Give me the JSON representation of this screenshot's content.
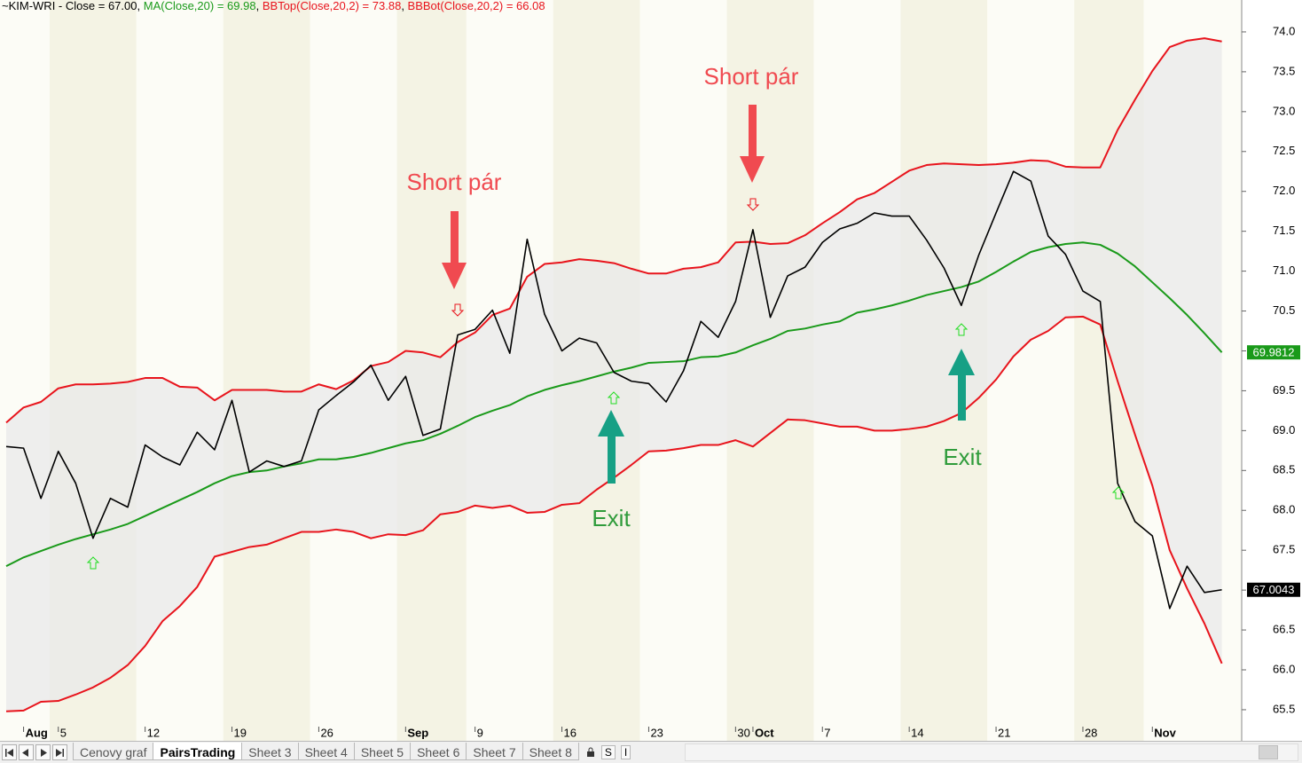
{
  "chart_data": {
    "type": "line",
    "title": "~KIM-WRI",
    "legend_separators": {
      "after_title": " - ",
      "equals": " = ",
      "between": ", "
    },
    "categories": [
      null,
      "Aug",
      null,
      "5",
      null,
      null,
      null,
      null,
      "12",
      null,
      null,
      null,
      null,
      "19",
      null,
      null,
      null,
      null,
      "26",
      null,
      null,
      null,
      null,
      "Sep",
      null,
      null,
      null,
      "9",
      null,
      null,
      null,
      null,
      "16",
      null,
      null,
      null,
      null,
      "23",
      null,
      null,
      null,
      null,
      "30",
      "Oct",
      null,
      null,
      null,
      "7",
      null,
      null,
      null,
      null,
      "14",
      null,
      null,
      null,
      null,
      "21",
      null,
      null,
      null,
      null,
      "28",
      null,
      null,
      null,
      "Nov",
      null,
      null,
      null,
      null
    ],
    "series": [
      {
        "name": "Close",
        "color": "#000000",
        "legend_value": "67.00",
        "axis_label": "67.0043",
        "values": [
          68.8,
          68.78,
          68.15,
          68.74,
          68.34,
          67.65,
          68.15,
          68.04,
          68.82,
          68.67,
          68.57,
          68.98,
          68.76,
          69.38,
          68.48,
          68.62,
          68.55,
          68.62,
          69.26,
          69.44,
          69.61,
          69.82,
          69.38,
          69.68,
          68.94,
          69.02,
          70.2,
          70.27,
          70.51,
          69.97,
          71.4,
          70.46,
          70.0,
          70.16,
          70.1,
          69.73,
          69.62,
          69.59,
          69.36,
          69.75,
          70.37,
          70.17,
          70.62,
          71.52,
          70.42,
          70.94,
          71.05,
          71.36,
          71.53,
          71.6,
          71.73,
          71.69,
          71.69,
          71.39,
          71.04,
          70.57,
          71.2,
          71.73,
          72.25,
          72.13,
          71.44,
          71.21,
          70.75,
          70.62,
          68.34,
          67.86,
          67.68,
          66.77,
          67.3,
          66.97,
          67.0043
        ]
      },
      {
        "name": "MA(Close,20)",
        "color": "#1a9a1a",
        "legend_value": "69.98",
        "axis_label": "69.9812",
        "values": [
          67.3,
          67.41,
          67.49,
          67.57,
          67.64,
          67.7,
          67.76,
          67.83,
          67.93,
          68.03,
          68.13,
          68.23,
          68.34,
          68.43,
          68.48,
          68.5,
          68.55,
          68.59,
          68.64,
          68.64,
          68.67,
          68.72,
          68.78,
          68.84,
          68.88,
          68.96,
          69.06,
          69.17,
          69.25,
          69.32,
          69.43,
          69.51,
          69.57,
          69.62,
          69.68,
          69.74,
          69.79,
          69.85,
          69.86,
          69.87,
          69.92,
          69.93,
          69.98,
          70.07,
          70.15,
          70.25,
          70.28,
          70.33,
          70.37,
          70.48,
          70.52,
          70.57,
          70.63,
          70.7,
          70.75,
          70.8,
          70.87,
          70.99,
          71.12,
          71.24,
          71.3,
          71.34,
          71.36,
          71.33,
          71.22,
          71.06,
          70.86,
          70.66,
          70.45,
          70.22,
          69.9812
        ]
      },
      {
        "name": "BBTop(Close,20,2)",
        "color": "#e8141c",
        "legend_value": "73.88",
        "values": [
          69.1,
          69.29,
          69.36,
          69.53,
          69.58,
          69.58,
          69.59,
          69.61,
          69.66,
          69.66,
          69.55,
          69.54,
          69.38,
          69.51,
          69.51,
          69.51,
          69.49,
          69.49,
          69.58,
          69.52,
          69.63,
          69.81,
          69.86,
          70.0,
          69.98,
          69.92,
          70.11,
          70.23,
          70.45,
          70.53,
          70.93,
          71.09,
          71.11,
          71.15,
          71.13,
          71.1,
          71.03,
          70.97,
          70.97,
          71.03,
          71.05,
          71.11,
          71.36,
          71.37,
          71.34,
          71.35,
          71.45,
          71.6,
          71.74,
          71.9,
          71.98,
          72.12,
          72.26,
          72.33,
          72.35,
          72.34,
          72.33,
          72.34,
          72.36,
          72.39,
          72.38,
          72.31,
          72.3,
          72.3,
          72.77,
          73.15,
          73.51,
          73.81,
          73.89,
          73.92,
          73.88
        ]
      },
      {
        "name": "BBBot(Close,20,2)",
        "color": "#e8141c",
        "legend_value": "66.08",
        "values": [
          65.48,
          65.49,
          65.6,
          65.61,
          65.69,
          65.78,
          65.9,
          66.06,
          66.3,
          66.61,
          66.8,
          67.04,
          67.42,
          67.48,
          67.54,
          67.57,
          67.65,
          67.73,
          67.73,
          67.76,
          67.73,
          67.65,
          67.7,
          67.69,
          67.75,
          67.95,
          67.98,
          68.06,
          68.03,
          68.06,
          67.97,
          67.98,
          68.07,
          68.09,
          68.26,
          68.41,
          68.57,
          68.74,
          68.75,
          68.78,
          68.82,
          68.82,
          68.88,
          68.8,
          68.97,
          69.14,
          69.13,
          69.09,
          69.05,
          69.05,
          69.0,
          69.0,
          69.02,
          69.05,
          69.12,
          69.22,
          69.41,
          69.64,
          69.93,
          70.14,
          70.25,
          70.42,
          70.43,
          70.33,
          69.62,
          68.95,
          68.31,
          67.5,
          67.02,
          66.58,
          66.08
        ]
      }
    ],
    "ylim": [
      65.11,
      74.4
    ],
    "yticks": [
      65.5,
      {
        "value": 66,
        "label": "66.0"
      },
      66.5,
      {
        "value": 67,
        "label": "67.0"
      },
      67.5,
      {
        "value": 68,
        "label": "68.0"
      },
      68.5,
      {
        "value": 69,
        "label": "69.0"
      },
      69.5,
      {
        "value": 70,
        "label": "70.0"
      },
      70.5,
      {
        "value": 71,
        "label": "71.0"
      },
      71.5,
      {
        "value": 72,
        "label": "72.0"
      },
      72.5,
      {
        "value": 73,
        "label": "73.0"
      },
      73.5,
      {
        "value": 74,
        "label": "74.0"
      }
    ],
    "annotations": [
      "Short pár",
      "Short pár",
      "Exit",
      "Exit"
    ]
  },
  "tab_bar": {
    "tabs": [
      "Cenovy graf",
      "PairsTrading",
      "Sheet 3",
      "Sheet 4",
      "Sheet 5",
      "Sheet 6",
      "Sheet 7",
      "Sheet 8"
    ],
    "buttons": [
      "S",
      "I"
    ]
  }
}
